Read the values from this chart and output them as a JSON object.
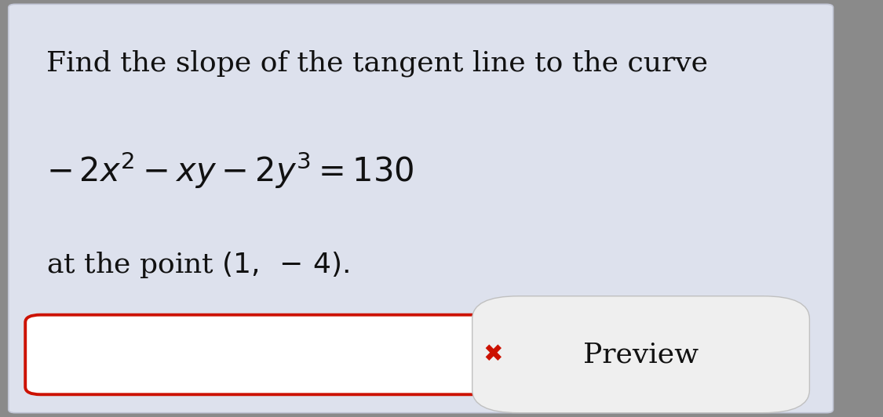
{
  "background_color": "#dde1ed",
  "outer_bg_left": "#dde1ed",
  "outer_bg_right": "#8a8a8a",
  "panel_bg": "#dde1ed",
  "panel_border": "#c0c4d4",
  "title_text": "Find the slope of the tangent line to the curve",
  "equation": "$-\\, 2x^2 -  xy - 2y^3 = 130$",
  "point_text": "at the point $(1,\\; -\\, 4).$",
  "input_box_color": "#ffffff",
  "input_box_border": "#cc1100",
  "preview_bg": "#f0f0f0",
  "preview_border": "#b0b0b0",
  "preview_text": "Preview",
  "x_symbol_color": "#cc1100",
  "title_fontsize": 26,
  "eq_fontsize": 30,
  "point_fontsize": 26,
  "preview_fontsize": 26
}
